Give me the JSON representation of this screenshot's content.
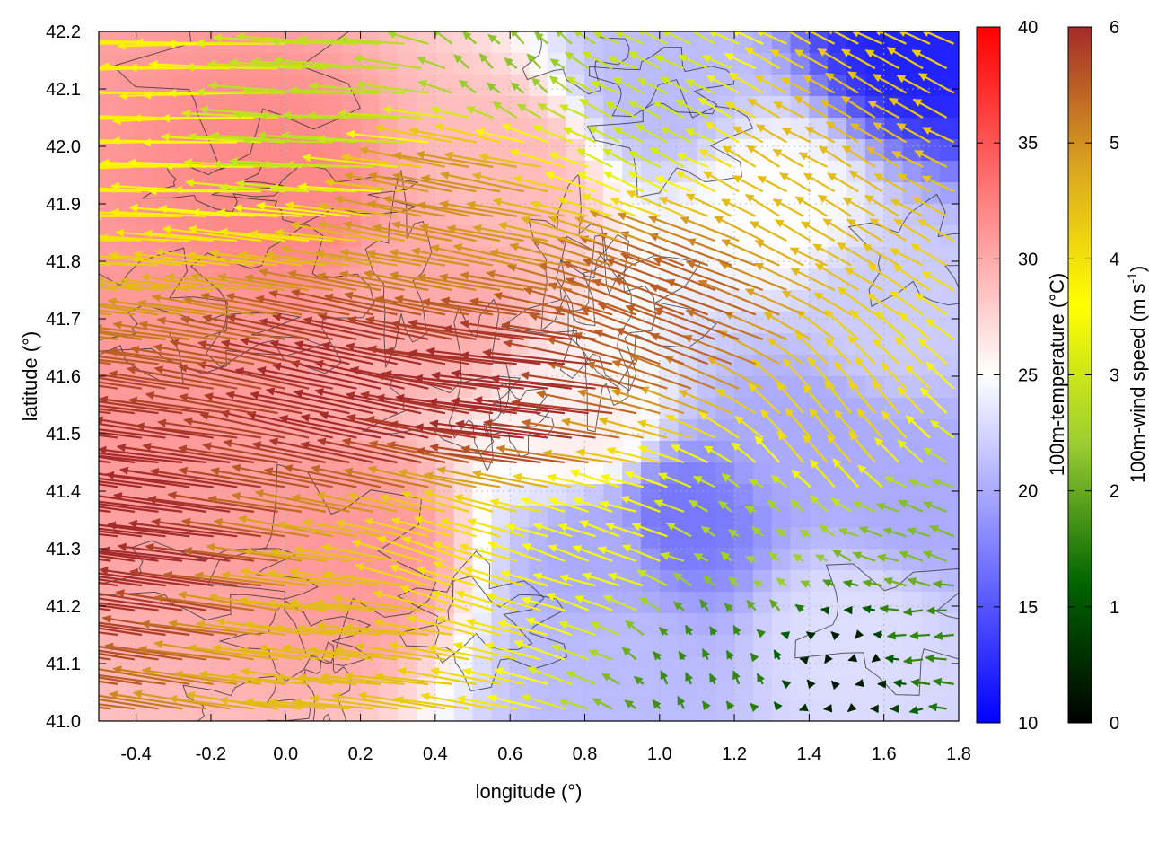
{
  "chart_data": {
    "type": "heatmap",
    "xlabel": "longitude (°)",
    "ylabel": "latitude (°)",
    "xlim": [
      -0.5,
      1.8
    ],
    "ylim": [
      41.0,
      42.2
    ],
    "xticks": [
      "-0.4",
      "-0.2",
      "0.0",
      "0.2",
      "0.4",
      "0.6",
      "0.8",
      "1.0",
      "1.2",
      "1.4",
      "1.6",
      "1.8"
    ],
    "xtick_values": [
      -0.4,
      -0.2,
      0.0,
      0.2,
      0.4,
      0.6,
      0.8,
      1.0,
      1.2,
      1.4,
      1.6,
      1.8
    ],
    "yticks": [
      "41.0",
      "41.1",
      "41.2",
      "41.3",
      "41.4",
      "41.5",
      "41.6",
      "41.7",
      "41.8",
      "41.9",
      "42.0",
      "42.1",
      "42.2"
    ],
    "ytick_values": [
      41.0,
      41.1,
      41.2,
      41.3,
      41.4,
      41.5,
      41.6,
      41.7,
      41.8,
      41.9,
      42.0,
      42.1,
      42.2
    ],
    "grid": true,
    "temperature_colorbar": {
      "label": "100m-temperature (°C)",
      "range": [
        10,
        40
      ],
      "ticks": [
        "10",
        "15",
        "20",
        "25",
        "30",
        "35",
        "40"
      ],
      "tick_values": [
        10,
        15,
        20,
        25,
        30,
        35,
        40
      ],
      "colors": [
        "#0000ff",
        "#ffffff",
        "#ff0000"
      ]
    },
    "wind_colorbar": {
      "label_main": "100m-wind speed (m s",
      "label_sup": "-1",
      "label_end": ")",
      "range": [
        0,
        6
      ],
      "ticks": [
        "0",
        "1",
        "2",
        "3",
        "4",
        "5",
        "6"
      ],
      "tick_values": [
        0,
        1,
        2,
        3,
        4,
        5,
        6
      ],
      "colors": [
        "#000000",
        "#006400",
        "#9acd32",
        "#ffff00",
        "#daa520",
        "#a52a2a"
      ]
    },
    "temperature_regions": [
      {
        "lon": -0.3,
        "lat": 41.6,
        "temp": 31
      },
      {
        "lon": 0.0,
        "lat": 41.9,
        "temp": 32
      },
      {
        "lon": 0.2,
        "lat": 41.3,
        "temp": 31
      },
      {
        "lon": 0.4,
        "lat": 41.75,
        "temp": 30
      },
      {
        "lon": 0.6,
        "lat": 41.95,
        "temp": 29
      },
      {
        "lon": 0.8,
        "lat": 41.5,
        "temp": 26
      },
      {
        "lon": 0.85,
        "lat": 41.3,
        "temp": 20
      },
      {
        "lon": 0.9,
        "lat": 41.1,
        "temp": 21
      },
      {
        "lon": 1.0,
        "lat": 42.1,
        "temp": 21
      },
      {
        "lon": 1.05,
        "lat": 41.35,
        "temp": 17
      },
      {
        "lon": 1.3,
        "lat": 41.9,
        "temp": 25
      },
      {
        "lon": 1.4,
        "lat": 41.5,
        "temp": 20
      },
      {
        "lon": 1.5,
        "lat": 41.15,
        "temp": 23
      },
      {
        "lon": 1.6,
        "lat": 41.7,
        "temp": 22
      },
      {
        "lon": 1.7,
        "lat": 42.18,
        "temp": 12
      },
      {
        "lon": 1.7,
        "lat": 41.4,
        "temp": 20
      }
    ],
    "wind_regions": [
      {
        "lon": -0.3,
        "lat": 41.35,
        "u": -4.5,
        "v": 0.6,
        "speed": 6.0
      },
      {
        "lon": 0.3,
        "lat": 41.55,
        "u": -4.2,
        "v": 0.9,
        "speed": 6.0
      },
      {
        "lon": 0.7,
        "lat": 41.55,
        "u": -4.5,
        "v": 0.5,
        "speed": 6.0
      },
      {
        "lon": 1.1,
        "lat": 41.7,
        "u": -3.5,
        "v": 1.3,
        "speed": 5.5
      },
      {
        "lon": -0.3,
        "lat": 42.12,
        "u": -4.0,
        "v": 0.0,
        "speed": 3.8
      },
      {
        "lon": 0.2,
        "lat": 42.05,
        "u": -3.8,
        "v": 0.2,
        "speed": 2.8
      },
      {
        "lon": 0.6,
        "lat": 42.15,
        "u": -0.5,
        "v": 0.5,
        "speed": 2.3
      },
      {
        "lon": 1.0,
        "lat": 42.05,
        "u": -1.2,
        "v": 0.6,
        "speed": 3.0
      },
      {
        "lon": 0.5,
        "lat": 41.9,
        "u": -3.2,
        "v": 0.6,
        "speed": 5.0
      },
      {
        "lon": 1.4,
        "lat": 41.95,
        "u": -1.2,
        "v": 0.7,
        "speed": 4.5
      },
      {
        "lon": 1.5,
        "lat": 41.5,
        "u": -1.0,
        "v": 1.2,
        "speed": 4.2
      },
      {
        "lon": 1.3,
        "lat": 41.3,
        "u": -0.4,
        "v": 0.3,
        "speed": 2.5
      },
      {
        "lon": 1.15,
        "lat": 41.1,
        "u": -0.2,
        "v": 0.4,
        "speed": 1.6
      },
      {
        "lon": 1.5,
        "lat": 41.1,
        "u": -0.1,
        "v": 0.0,
        "speed": 0.3
      },
      {
        "lon": 1.75,
        "lat": 41.15,
        "u": -0.8,
        "v": 0.0,
        "speed": 1.6
      },
      {
        "lon": 1.7,
        "lat": 41.3,
        "u": -0.9,
        "v": 0.3,
        "speed": 2.2
      },
      {
        "lon": 0.3,
        "lat": 41.15,
        "u": -3.5,
        "v": 0.4,
        "speed": 4.5
      },
      {
        "lon": 0.5,
        "lat": 41.25,
        "u": -2.5,
        "v": 0.8,
        "speed": 4.0
      },
      {
        "lon": 0.85,
        "lat": 41.3,
        "u": -1.5,
        "v": 0.5,
        "speed": 3.5
      }
    ]
  }
}
